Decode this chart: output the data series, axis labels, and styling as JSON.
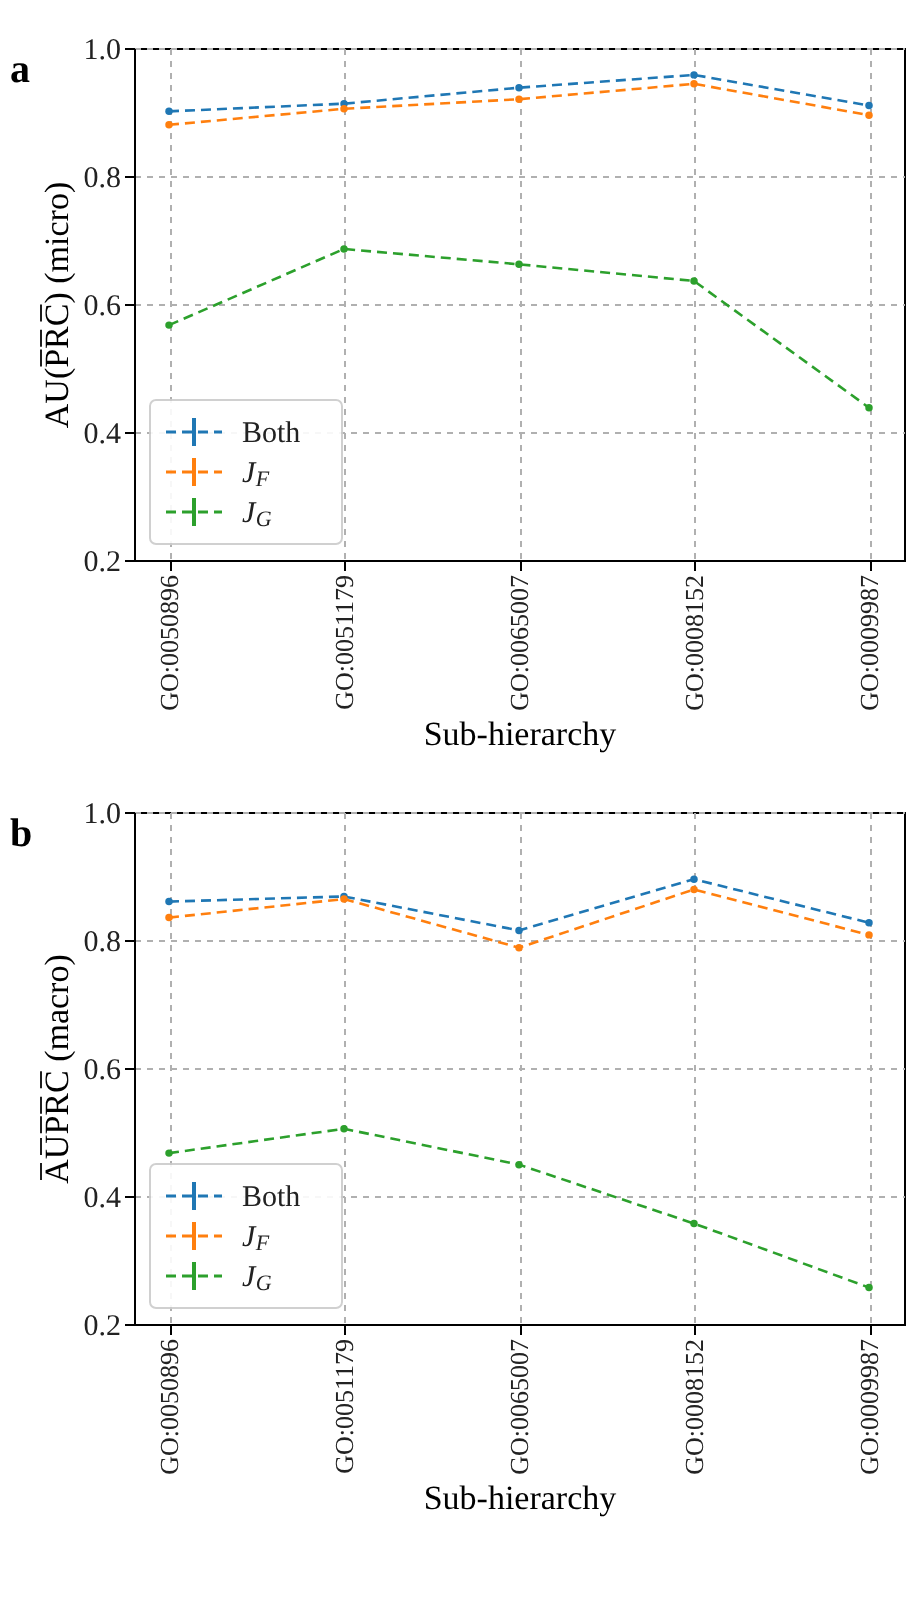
{
  "chart_data": [
    {
      "type": "line",
      "title": "a",
      "categories": [
        "GO:0050896",
        "GO:0051179",
        "GO:0065007",
        "GO:0008152",
        "GO:0009987"
      ],
      "xlabel": "Sub-hierarchy",
      "ylabel": "AU(P̅R̅C̅) (micro)",
      "ylim": [
        0.2,
        1.0
      ],
      "yticks": [
        0.2,
        0.4,
        0.6,
        0.8,
        {
          "value": 1.0,
          "label": "1.0"
        }
      ],
      "grid": true,
      "legend": "bottom left",
      "marker": "circle",
      "line_style": "dashed",
      "series": [
        {
          "name": "Both",
          "color": "#1f77b4",
          "values": [
            0.901,
            0.913,
            0.938,
            0.958,
            0.91
          ]
        },
        {
          "name": "J$_{F}$",
          "color": "#ff7f0e",
          "values": [
            0.88,
            0.905,
            0.92,
            0.944,
            0.895
          ]
        },
        {
          "name": "J$_{G}$",
          "color": "#2ca02c",
          "values": [
            0.567,
            0.686,
            0.662,
            0.636,
            0.438
          ]
        }
      ]
    },
    {
      "type": "line",
      "title": "b",
      "categories": [
        "GO:0050896",
        "GO:0051179",
        "GO:0065007",
        "GO:0008152",
        "GO:0009987"
      ],
      "xlabel": "Sub-hierarchy",
      "ylabel": "A̅U̅P̅R̅C̅ (macro)",
      "ylim": [
        0.2,
        1.0
      ],
      "yticks": [
        0.2,
        0.4,
        0.6,
        0.8,
        {
          "value": 1.0,
          "label": "1.0"
        }
      ],
      "grid": true,
      "legend": "bottom left",
      "marker": "circle",
      "line_style": "dashed",
      "series": [
        {
          "name": "Both",
          "color": "#1f77b4",
          "values": [
            0.86,
            0.868,
            0.815,
            0.895,
            0.827
          ]
        },
        {
          "name": "J$_{F}$",
          "color": "#ff7f0e",
          "values": [
            0.835,
            0.864,
            0.788,
            0.879,
            0.808
          ]
        },
        {
          "name": "J$_{G}$",
          "color": "#2ca02c",
          "values": [
            0.467,
            0.505,
            0.449,
            0.357,
            0.257
          ]
        }
      ]
    }
  ]
}
